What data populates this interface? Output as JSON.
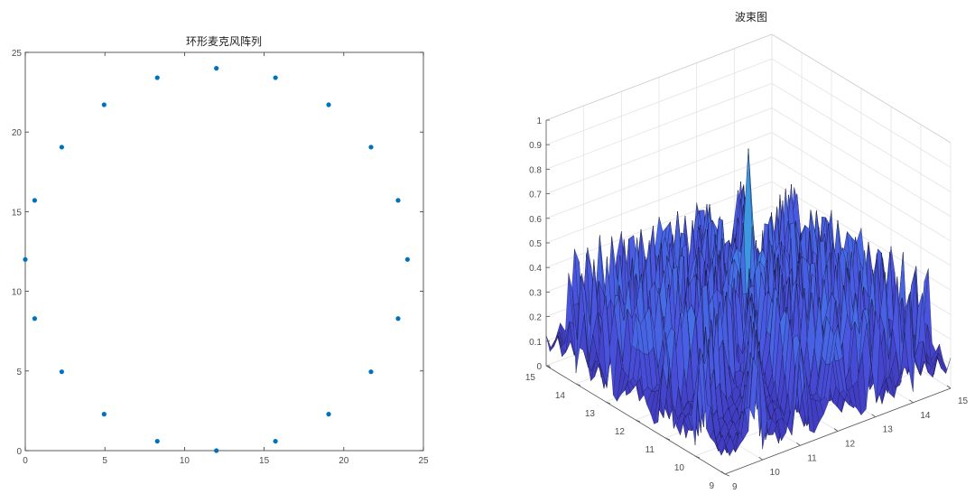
{
  "chart_data": [
    {
      "type": "scatter",
      "title": "环形麦克风阵列",
      "xlabel": "",
      "ylabel": "",
      "xlim": [
        0,
        25
      ],
      "ylim": [
        0,
        25
      ],
      "xticks": [
        "0",
        "5",
        "10",
        "15",
        "20",
        "25"
      ],
      "yticks": [
        "0",
        "5",
        "10",
        "15",
        "20",
        "25"
      ],
      "grid": false,
      "marker_color": "#0072bd",
      "points": [
        {
          "x": 24.0,
          "y": 12.0
        },
        {
          "x": 23.41,
          "y": 15.71
        },
        {
          "x": 21.71,
          "y": 19.05
        },
        {
          "x": 19.05,
          "y": 21.71
        },
        {
          "x": 15.71,
          "y": 23.41
        },
        {
          "x": 12.0,
          "y": 24.0
        },
        {
          "x": 8.29,
          "y": 23.41
        },
        {
          "x": 4.95,
          "y": 21.71
        },
        {
          "x": 2.29,
          "y": 19.05
        },
        {
          "x": 0.59,
          "y": 15.71
        },
        {
          "x": 0.0,
          "y": 12.0
        },
        {
          "x": 0.59,
          "y": 8.29
        },
        {
          "x": 2.29,
          "y": 4.95
        },
        {
          "x": 4.95,
          "y": 2.29
        },
        {
          "x": 8.29,
          "y": 0.59
        },
        {
          "x": 12.0,
          "y": 0.0
        },
        {
          "x": 15.71,
          "y": 0.59
        },
        {
          "x": 19.05,
          "y": 2.29
        },
        {
          "x": 21.71,
          "y": 4.95
        },
        {
          "x": 23.41,
          "y": 8.29
        }
      ]
    },
    {
      "type": "surface",
      "title": "波束图",
      "xlim": [
        9,
        15
      ],
      "ylim": [
        9,
        15
      ],
      "zlim": [
        0,
        1
      ],
      "xticks": [
        "9",
        "10",
        "11",
        "12",
        "13",
        "14",
        "15"
      ],
      "yticks": [
        "9",
        "10",
        "11",
        "12",
        "13",
        "14",
        "15"
      ],
      "zticks": [
        "0",
        "0.1",
        "0.2",
        "0.3",
        "0.4",
        "0.5",
        "0.6",
        "0.7",
        "0.8",
        "0.9",
        "1"
      ],
      "grid": true,
      "peak": {
        "x": 12,
        "y": 12,
        "z": 0.93
      },
      "sidelobe_max": 0.5,
      "colormap": [
        "#3b2fb0",
        "#4a55e0",
        "#3f8ff0",
        "#3cbfa0"
      ]
    }
  ]
}
